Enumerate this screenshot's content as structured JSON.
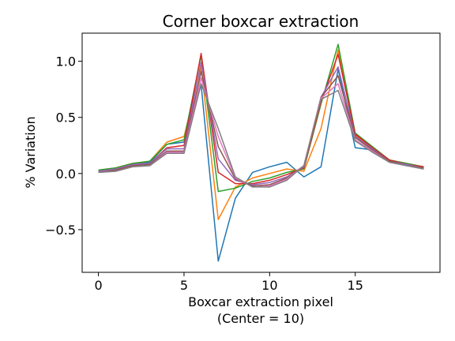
{
  "chart_data": {
    "type": "line",
    "title": "Corner boxcar extraction",
    "xlabel_line1": "Boxcar extraction pixel",
    "xlabel_line2": "(Center = 10)",
    "ylabel": "% Variation",
    "xlim": [
      -0.95,
      19.95
    ],
    "ylim": [
      -0.88,
      1.25
    ],
    "xticks": [
      0,
      5,
      10,
      15
    ],
    "xtick_labels": [
      "0",
      "5",
      "10",
      "15"
    ],
    "yticks": [
      -0.5,
      0.0,
      0.5,
      1.0
    ],
    "ytick_labels": [
      "−0.5",
      "0.0",
      "0.5",
      "1.0"
    ],
    "grid": false,
    "x": [
      0,
      1,
      2,
      3,
      4,
      5,
      6,
      7,
      8,
      9,
      10,
      11,
      12,
      13,
      14,
      15,
      16,
      17,
      18,
      19
    ],
    "series": [
      {
        "color": "#1f77b4",
        "values": [
          0.02,
          0.04,
          0.08,
          0.1,
          0.26,
          0.28,
          0.79,
          -0.78,
          -0.22,
          0.01,
          0.06,
          0.1,
          -0.03,
          0.06,
          0.93,
          0.23,
          0.21,
          0.11,
          0.08,
          0.05
        ]
      },
      {
        "color": "#ff7f0e",
        "values": [
          0.03,
          0.05,
          0.09,
          0.11,
          0.28,
          0.33,
          0.95,
          -0.41,
          -0.12,
          -0.04,
          0.0,
          0.04,
          0.02,
          0.4,
          1.1,
          0.34,
          0.22,
          0.12,
          0.09,
          0.06
        ]
      },
      {
        "color": "#2ca02c",
        "values": [
          0.03,
          0.05,
          0.09,
          0.11,
          0.26,
          0.3,
          1.05,
          -0.16,
          -0.13,
          -0.07,
          -0.04,
          0.01,
          0.04,
          0.62,
          1.15,
          0.36,
          0.24,
          0.12,
          0.09,
          0.06
        ]
      },
      {
        "color": "#d62728",
        "values": [
          0.02,
          0.04,
          0.08,
          0.09,
          0.23,
          0.25,
          1.07,
          0.01,
          -0.09,
          -0.09,
          -0.06,
          -0.01,
          0.05,
          0.64,
          1.06,
          0.35,
          0.23,
          0.12,
          0.08,
          0.06
        ]
      },
      {
        "color": "#9467bd",
        "values": [
          0.02,
          0.04,
          0.08,
          0.09,
          0.22,
          0.22,
          0.99,
          0.13,
          -0.06,
          -0.1,
          -0.08,
          -0.03,
          0.06,
          0.68,
          0.95,
          0.33,
          0.22,
          0.11,
          0.08,
          0.05
        ]
      },
      {
        "color": "#8c564b",
        "values": [
          0.01,
          0.03,
          0.07,
          0.08,
          0.2,
          0.2,
          0.91,
          0.24,
          -0.05,
          -0.11,
          -0.1,
          -0.04,
          0.07,
          0.68,
          0.87,
          0.32,
          0.21,
          0.11,
          0.07,
          0.05
        ]
      },
      {
        "color": "#e377c2",
        "values": [
          0.01,
          0.02,
          0.06,
          0.07,
          0.19,
          0.19,
          0.85,
          0.33,
          -0.04,
          -0.12,
          -0.11,
          -0.05,
          0.07,
          0.67,
          0.8,
          0.3,
          0.2,
          0.1,
          0.07,
          0.04
        ]
      },
      {
        "color": "#7f7f7f",
        "values": [
          0.01,
          0.02,
          0.06,
          0.07,
          0.18,
          0.18,
          0.8,
          0.4,
          -0.03,
          -0.12,
          -0.12,
          -0.06,
          0.07,
          0.66,
          0.74,
          0.29,
          0.19,
          0.1,
          0.07,
          0.04
        ]
      }
    ]
  }
}
